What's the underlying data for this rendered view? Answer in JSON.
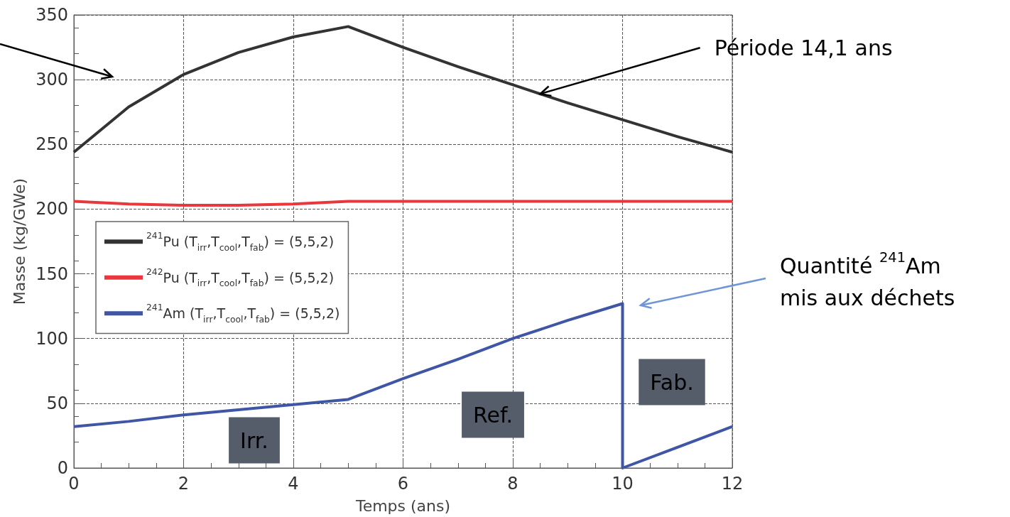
{
  "chart_data": {
    "type": "line",
    "xlabel": "Temps (ans)",
    "ylabel": "Masse (kg/GWe)",
    "xlim": [
      0,
      12
    ],
    "xticks": [
      0,
      2,
      4,
      6,
      8,
      10,
      12
    ],
    "ylim": [
      0,
      350
    ],
    "yticks": [
      0,
      50,
      100,
      150,
      200,
      250,
      300,
      350
    ],
    "grid": true,
    "legend": "left",
    "series": [
      {
        "name": "$^{241}$Pu (T$_{irr}$,T$_{cool}$,T$_{fab}$) = (5,5,2)",
        "color": "#333333",
        "x": [
          0,
          1,
          2,
          3,
          4,
          5,
          6,
          7,
          8,
          9,
          10,
          11,
          12
        ],
        "values": [
          244,
          279,
          304,
          321,
          333,
          341,
          325,
          310,
          296,
          282,
          269,
          256,
          244
        ]
      },
      {
        "name": "$^{242}$Pu (T$_{irr}$,T$_{cool}$,T$_{fab}$) = (5,5,2)",
        "color": "#e8383d",
        "x": [
          0,
          1,
          2,
          3,
          4,
          5,
          6,
          7,
          8,
          9,
          10,
          11,
          12
        ],
        "values": [
          206,
          204,
          203,
          203,
          204,
          206,
          206,
          206,
          206,
          206,
          206,
          206,
          206
        ]
      },
      {
        "name": "$^{241}$Am (T$_{irr}$,T$_{cool}$,T$_{fab}$) = (5,5,2)",
        "color": "#3f55a5",
        "x": [
          0,
          1,
          2,
          3,
          4,
          5,
          6,
          7,
          8,
          9,
          10,
          10,
          11,
          12
        ],
        "values": [
          32,
          36,
          41,
          45,
          49,
          53,
          69,
          84,
          100,
          114,
          127,
          0,
          16,
          32
        ]
      }
    ],
    "annotations": [
      {
        "text": "Période 14,1 ans",
        "x": 8.5,
        "y": 289
      },
      "Quantité $^{241}$Am\nmis aux déchets",
      "Irr.",
      "Ref.",
      "Fab."
    ]
  }
}
